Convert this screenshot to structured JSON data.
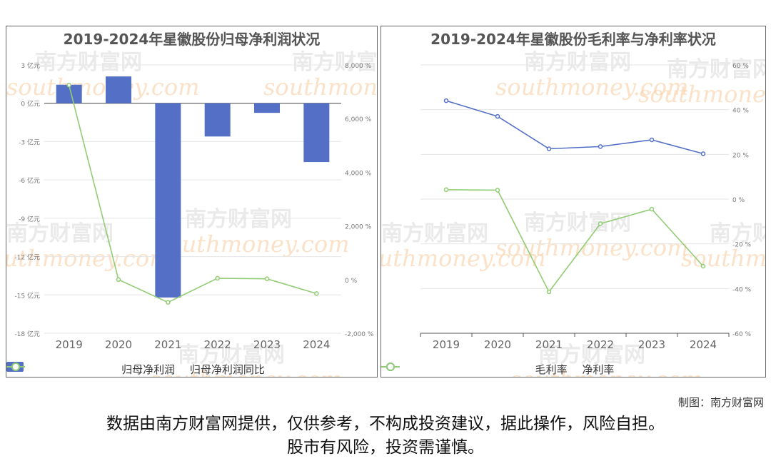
{
  "charts": {
    "left": {
      "title": "2019-2024年星徽股份归母净利润状况",
      "legend": [
        "归母净利润",
        "归母净利润同比"
      ],
      "y_left_ticks": [
        "3 亿元",
        "0 亿元",
        "-3 亿元",
        "-6 亿元",
        "-9 亿元",
        "-12 亿元",
        "-15 亿元",
        "-18 亿元"
      ],
      "y_right_ticks": [
        "8,000 %",
        "6,000 %",
        "4,000 %",
        "2,000 %",
        "0 %",
        "-2,000 %"
      ],
      "x_ticks": [
        "2019",
        "2020",
        "2021",
        "2022",
        "2023",
        "2024"
      ]
    },
    "right": {
      "title": "2019-2024年星徽股份毛利率与净利率状况",
      "legend": [
        "毛利率",
        "净利率"
      ],
      "y_right_ticks": [
        "60 %",
        "40 %",
        "20 %",
        "0 %",
        "-20 %",
        "-40 %",
        "-60 %"
      ],
      "x_ticks": [
        "2019",
        "2020",
        "2021",
        "2022",
        "2023",
        "2024"
      ]
    }
  },
  "chart_data": [
    {
      "type": "bar",
      "title": "2019-2024年星徽股份归母净利润状况",
      "categories": [
        "2019",
        "2020",
        "2021",
        "2022",
        "2023",
        "2024"
      ],
      "series": [
        {
          "name": "归母净利润",
          "type": "bar",
          "axis": "left",
          "unit": "亿元",
          "values": [
            1.45,
            2.1,
            -15.2,
            -2.6,
            -0.75,
            -4.6
          ]
        },
        {
          "name": "归母净利润同比",
          "type": "line",
          "axis": "right",
          "unit": "%",
          "values": [
            7250,
            0,
            -850,
            50,
            30,
            -520
          ]
        }
      ],
      "y_left_lim": [
        -18,
        3
      ],
      "y_right_lim": [
        -2000,
        8000
      ],
      "grid": true,
      "legend_position": "bottom"
    },
    {
      "type": "line",
      "title": "2019-2024年星徽股份毛利率与净利率状况",
      "categories": [
        "2019",
        "2020",
        "2021",
        "2022",
        "2023",
        "2024"
      ],
      "series": [
        {
          "name": "毛利率",
          "values": [
            44,
            37,
            22.5,
            23.5,
            26.5,
            20.3
          ]
        },
        {
          "name": "净利率",
          "values": [
            4.2,
            4,
            -41.5,
            -11,
            -4.5,
            -30
          ]
        }
      ],
      "y_unit": "%",
      "ylim": [
        -60,
        60
      ],
      "grid": true,
      "legend_position": "bottom"
    }
  ],
  "colors": {
    "bar": "#5470c6",
    "line_green": "#91cc75",
    "line_blue": "#5470c6",
    "watermark": "#f7c99b"
  },
  "watermark": {
    "cn": "南方财富网",
    "en": "southmoney.com"
  },
  "footer": {
    "credit": "制图：南方财富网",
    "disclaimer_line1": "数据由南方财富网提供，仅供参考，不构成投资建议，据此操作，风险自担。",
    "disclaimer_line2": "股市有风险，投资需谨慎。"
  }
}
